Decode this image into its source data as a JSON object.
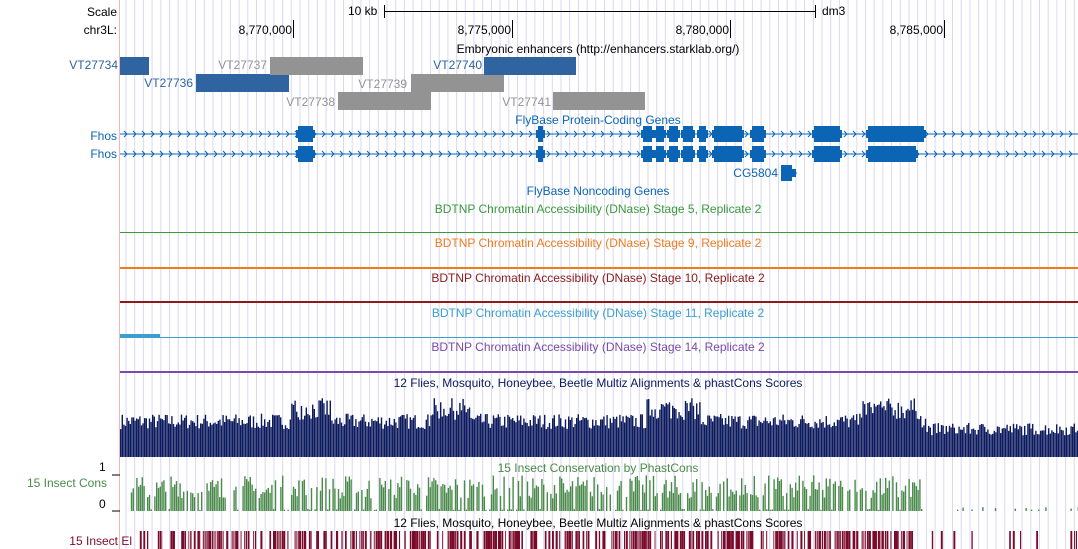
{
  "ruler": {
    "scale_label": "Scale",
    "chrom_label": "chr3L:",
    "scale_bar_label": "10 kb",
    "assembly": "dm3",
    "ticks": [
      "8,770,000",
      "8,775,000",
      "8,780,000",
      "8,785,000"
    ]
  },
  "enhancers": {
    "title": "Embryonic enhancers (http://enhancers.starklab.org/)",
    "items": [
      {
        "name": "VT27734",
        "color": "#2f64a0"
      },
      {
        "name": "VT27736",
        "color": "#2f64a0"
      },
      {
        "name": "VT27737",
        "color": "#939393"
      },
      {
        "name": "VT27738",
        "color": "#939393"
      },
      {
        "name": "VT27739",
        "color": "#939393"
      },
      {
        "name": "VT27740",
        "color": "#2f64a0"
      },
      {
        "name": "VT27741",
        "color": "#939393"
      }
    ]
  },
  "genes": {
    "title": "FlyBase Protein-Coding Genes",
    "transcripts": [
      "Fhos",
      "Fhos"
    ],
    "other_gene": "CG5804",
    "color": "#0c64b4"
  },
  "noncoding": {
    "title": "FlyBase Noncoding Genes"
  },
  "dnase_tracks": [
    {
      "title": "BDTNP Chromatin Accessibility (DNase) Stage 5, Replicate 2",
      "color": "#3a9a3a"
    },
    {
      "title": "BDTNP Chromatin Accessibility (DNase) Stage 9, Replicate 2",
      "color": "#f07a1e"
    },
    {
      "title": "BDTNP Chromatin Accessibility (DNase) Stage 10, Replicate 2",
      "color": "#8b1a1a"
    },
    {
      "title": "BDTNP Chromatin Accessibility (DNase) Stage 11, Replicate 2",
      "color": "#3a9fd0"
    },
    {
      "title": "BDTNP Chromatin Accessibility (DNase) Stage 14, Replicate 2",
      "color": "#7a4aa8"
    }
  ],
  "multiz": {
    "title": "12 Flies, Mosquito, Honeybee, Beetle Multiz Alignments & phastCons Scores",
    "color": "#0c1a5e"
  },
  "cons": {
    "label": "15 Insect Cons",
    "title": "15 Insect Conservation by PhastCons",
    "y_max": "1",
    "y_min": "0",
    "color": "#4a8a4a"
  },
  "el": {
    "label": "15 Insect El",
    "title": "12 Flies, Mosquito, Honeybee, Beetle Multiz Alignments & phastCons Scores",
    "color": "#7a0a2a"
  }
}
